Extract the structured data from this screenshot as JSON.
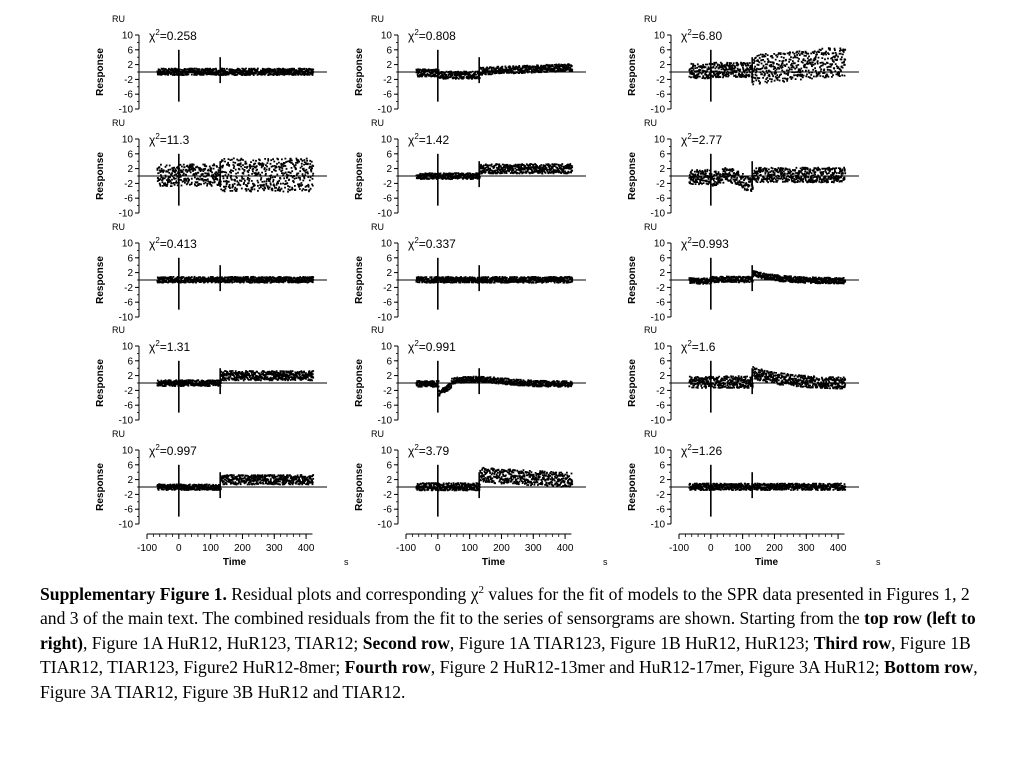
{
  "figure": {
    "y_unit": "RU",
    "x_unit": "s",
    "y_title": "Response",
    "x_title": "Time",
    "y_ticks": [
      "10",
      "6",
      "2",
      "-2",
      "-6",
      "-10"
    ],
    "x_ticks": [
      "-100",
      "0",
      "100",
      "200",
      "300",
      "400"
    ],
    "chi_prefix": "χ",
    "chi_sup": "2",
    "panels": [
      {
        "chi": "=0.258",
        "profile": "flat"
      },
      {
        "chi": "=0.808",
        "profile": "dip-spike"
      },
      {
        "chi": "=6.80",
        "profile": "spread-up"
      },
      {
        "chi": "=11.3",
        "profile": "spread-big"
      },
      {
        "chi": "=1.42",
        "profile": "step-up"
      },
      {
        "chi": "=2.77",
        "profile": "wave"
      },
      {
        "chi": "=0.413",
        "profile": "flat-spikes"
      },
      {
        "chi": "=0.337",
        "profile": "flat-spikes"
      },
      {
        "chi": "=0.993",
        "profile": "hump"
      },
      {
        "chi": "=1.31",
        "profile": "step-up"
      },
      {
        "chi": "=0.991",
        "profile": "dip-hump"
      },
      {
        "chi": "=1.6",
        "profile": "hump-big"
      },
      {
        "chi": "=0.997",
        "profile": "step-up"
      },
      {
        "chi": "=3.79",
        "profile": "step-up-big"
      },
      {
        "chi": "=1.26",
        "profile": "flat"
      }
    ]
  },
  "caption": {
    "lead": "Supplementary Figure 1.",
    "t1": " Residual plots and corresponding ",
    "chi": "χ",
    "sup": "2",
    "t2": " values for the fit of models to the SPR data presented in Figures 1, 2 and 3 of the main text. The combined residuals from the fit to the series of sensorgrams are shown. Starting from the ",
    "b1": "top row (left to right)",
    "t3": ", Figure 1A HuR12, HuR123, TIAR12; ",
    "b2": "Second row",
    "t4": ", Figure 1A TIAR123, Figure 1B HuR12, HuR123; ",
    "b3": "Third row",
    "t5": ", Figure 1B TIAR12, TIAR123, Figure2 HuR12-8mer; ",
    "b4": "Fourth row",
    "t6": ", Figure 2 HuR12-13mer and HuR12-17mer, Figure 3A HuR12; ",
    "b5": "Bottom row",
    "t7": ", Figure 3A TIAR12, Figure 3B HuR12 and TIAR12."
  }
}
